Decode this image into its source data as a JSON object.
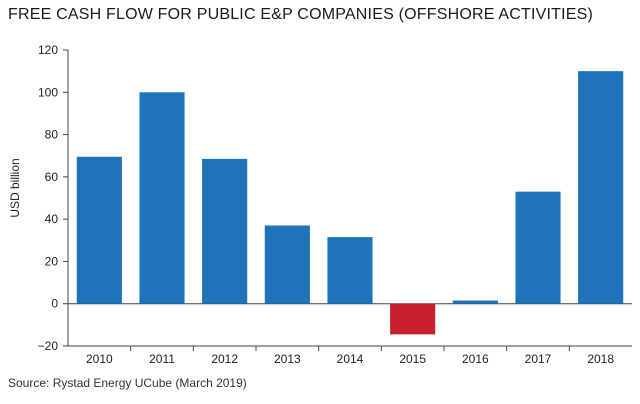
{
  "chart_data": {
    "type": "bar",
    "title": "FREE CASH FLOW FOR PUBLIC E&P COMPANIES (OFFSHORE ACTIVITIES)",
    "ylabel": "USD billion",
    "xlabel": "",
    "source": "Source: Rystad Energy UCube (March 2019)",
    "categories": [
      "2010",
      "2011",
      "2012",
      "2013",
      "2014",
      "2015",
      "2016",
      "2017",
      "2018"
    ],
    "values": [
      69.5,
      100,
      68.5,
      37,
      31.5,
      -14.5,
      1.5,
      53,
      110
    ],
    "ylim": [
      -20,
      120
    ],
    "yticks": [
      "−20",
      "0",
      "20",
      "40",
      "60",
      "80",
      "100",
      "120"
    ],
    "colors": {
      "positive": "#1f73b8",
      "negative": "#c8202f"
    },
    "grid": false,
    "legend": "none"
  }
}
